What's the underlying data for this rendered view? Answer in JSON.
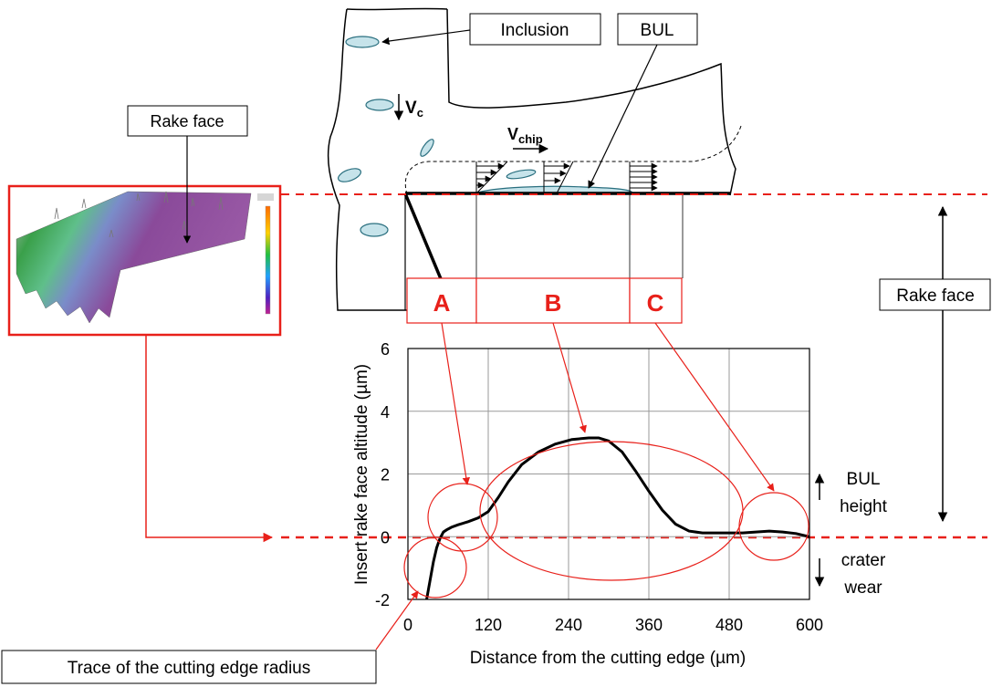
{
  "callouts": {
    "inclusion": "Inclusion",
    "bul": "BUL",
    "rake_face_image": "Rake face",
    "rake_face_right": "Rake face",
    "trace": "Trace of the cutting edge radius"
  },
  "symbols": {
    "vc_main": "V",
    "vc_sub": "c",
    "vchip_main": "V",
    "vchip_sub": "chip"
  },
  "zones": [
    "A",
    "B",
    "C"
  ],
  "side_notes": {
    "bul_line1": "BUL",
    "bul_line2": "height",
    "crater_line1": "crater",
    "crater_line2": "wear"
  },
  "colors": {
    "red": "#e8201a",
    "inclusion_fill": "#c6e3ea",
    "inclusion_stroke": "#2a6f7f"
  },
  "chart_data": {
    "type": "line",
    "xlabel": "Distance from the cutting edge (µm)",
    "ylabel": "Insert rake face altitude (µm)",
    "xlim": [
      0,
      600
    ],
    "ylim": [
      -2,
      6
    ],
    "xticks": [
      "0",
      "120",
      "240",
      "360",
      "480",
      "600"
    ],
    "yticks": [
      "-2",
      "0",
      "2",
      "4",
      "6"
    ],
    "grid": true,
    "series": [
      {
        "x": [
          28,
          33,
          38,
          43,
          48,
          53,
          58,
          65,
          75,
          90,
          105,
          120,
          135,
          150,
          170,
          195,
          220,
          245,
          270,
          285,
          300,
          320,
          340,
          360,
          380,
          400,
          420,
          440,
          460,
          480,
          500,
          520,
          540,
          560,
          580,
          600
        ],
        "values": [
          -2.0,
          -1.4,
          -0.8,
          -0.35,
          -0.05,
          0.15,
          0.22,
          0.3,
          0.38,
          0.48,
          0.6,
          0.8,
          1.25,
          1.75,
          2.3,
          2.7,
          2.95,
          3.1,
          3.15,
          3.15,
          3.05,
          2.7,
          2.1,
          1.45,
          0.85,
          0.4,
          0.18,
          0.12,
          0.12,
          0.12,
          0.12,
          0.15,
          0.18,
          0.15,
          0.1,
          0.0
        ]
      }
    ]
  }
}
